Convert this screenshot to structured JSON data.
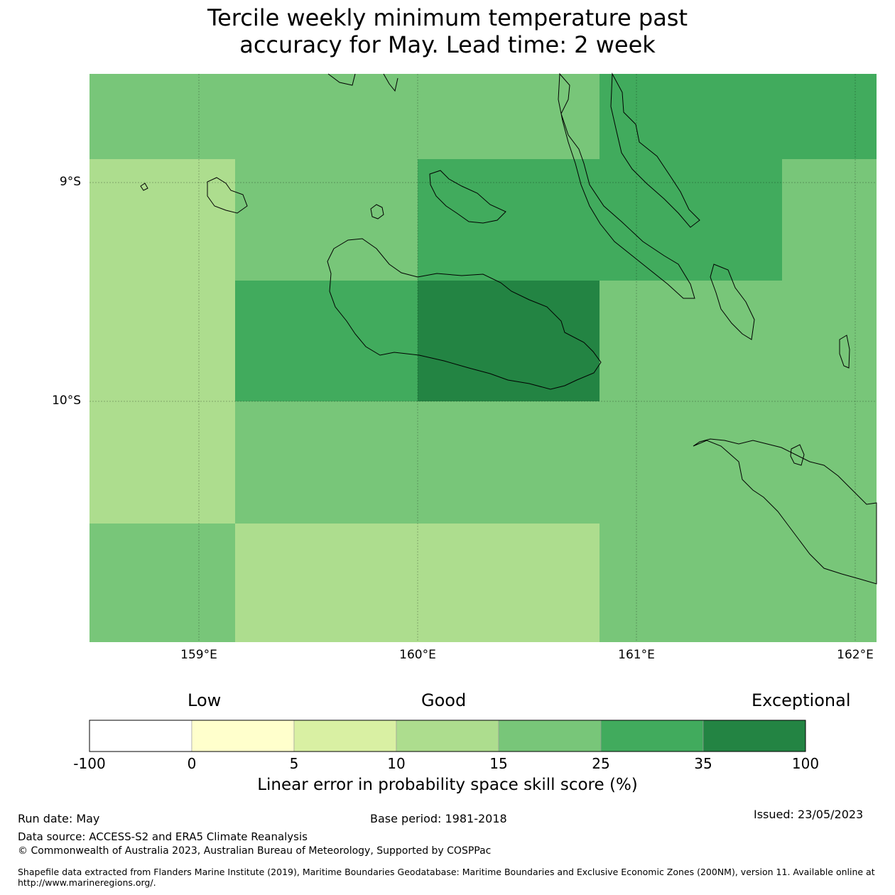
{
  "title": {
    "line1": "Tercile weekly minimum temperature past",
    "line2": "accuracy for May. Lead time: 2 week"
  },
  "map": {
    "lat_labels": [
      "9°S",
      "10°S"
    ],
    "lon_labels": [
      "159°E",
      "160°E",
      "161°E",
      "162°E"
    ],
    "colors": {
      "c10_15": "#addd8e",
      "c15_25": "#78c679",
      "c25_35": "#41ab5d",
      "c35_100": "#238443"
    }
  },
  "colorbar": {
    "category_labels": [
      "Low",
      "Good",
      "Exceptional"
    ],
    "ticks": [
      "-100",
      "0",
      "5",
      "10",
      "15",
      "25",
      "35",
      "100"
    ],
    "colors": [
      "#ffffff",
      "#ffffcc",
      "#d9f0a3",
      "#addd8e",
      "#78c679",
      "#41ab5d",
      "#238443"
    ],
    "label": "Linear error in probability space skill score (%)"
  },
  "footer": {
    "run_date": "Run date: May",
    "base_period": "Base period: 1981-2018",
    "issued": "Issued: 23/05/2023",
    "data_source": "Data source: ACCESS-S2 and ERA5 Climate Reanalysis",
    "copyright": "© Commonwealth of Australia 2023, Australian Bureau of Meteorology, Supported by COSPPac",
    "shapefile_line1": "Shapefile data extracted from Flanders Marine Institute (2019), Maritime Boundaries Geodatabase: Maritime Boundaries and Exclusive Economic Zones (200NM), version 11. Available online at",
    "shapefile_line2": "http://www.marineregions.org/."
  }
}
